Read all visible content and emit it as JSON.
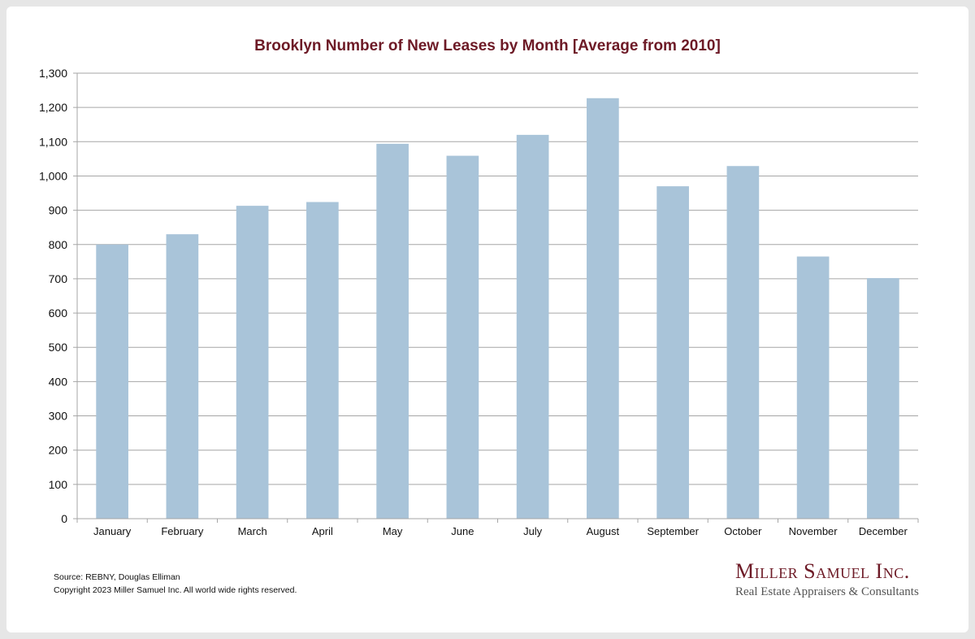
{
  "colors": {
    "title": "#6d1a26",
    "bar": "#a9c4d9",
    "grid": "#a6a6a6",
    "axis_text": "#111111",
    "logo": "#6d1a26"
  },
  "chart_data": {
    "type": "bar",
    "title": "Brooklyn Number of New Leases by Month [Average from 2010]",
    "categories": [
      "January",
      "February",
      "March",
      "April",
      "May",
      "June",
      "July",
      "August",
      "September",
      "October",
      "November",
      "December"
    ],
    "values": [
      800,
      830,
      913,
      924,
      1094,
      1059,
      1120,
      1227,
      970,
      1029,
      765,
      702
    ],
    "ylim": [
      0,
      1300
    ],
    "yticks": [
      "0",
      "100",
      "200",
      "300",
      "400",
      "500",
      "600",
      "700",
      "800",
      "900",
      "1,000",
      "1,100",
      "1,200",
      "1,300"
    ],
    "grid": true,
    "legend": "none"
  },
  "footer": {
    "source": "Source: REBNY, Douglas Elliman",
    "copyright": "Copyright 2023 Miller Samuel Inc.  All world wide rights reserved."
  },
  "logo": {
    "name": "Miller Samuel Inc.",
    "tagline": "Real Estate Appraisers & Consultants"
  }
}
